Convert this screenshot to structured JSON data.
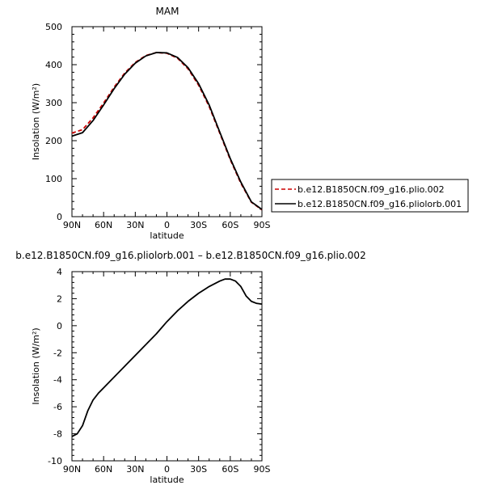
{
  "chart_data": [
    {
      "type": "line",
      "title": "MAM",
      "xlabel": "latitude",
      "ylabel": "Insolation (W/m²)",
      "x": [
        90,
        80,
        70,
        60,
        50,
        40,
        30,
        20,
        10,
        0,
        -10,
        -20,
        -30,
        -40,
        -50,
        -60,
        -70,
        -80,
        -90
      ],
      "xticks": [
        90,
        60,
        30,
        0,
        -30,
        -60,
        -90
      ],
      "xtick_labels": [
        "90N",
        "60N",
        "30N",
        "0",
        "30S",
        "60S",
        "90S"
      ],
      "xlim": [
        90,
        -90
      ],
      "ylim": [
        0,
        500
      ],
      "yticks": [
        0,
        100,
        200,
        300,
        400,
        500
      ],
      "series": [
        {
          "name": "b.e12.B1850CN.f09_g16.plio.002",
          "color": "#cc0000",
          "dash": "dashed",
          "values": [
            220,
            229,
            260,
            299,
            341,
            378,
            406,
            424,
            432,
            430,
            417,
            389,
            346,
            290,
            220,
            150,
            88,
            38,
            18
          ]
        },
        {
          "name": "b.e12.B1850CN.f09_g16.pliolorb.001",
          "color": "#000000",
          "dash": "solid",
          "values": [
            212,
            221,
            253,
            294,
            337,
            375,
            404,
            423,
            432,
            431,
            419,
            392,
            350,
            294,
            223,
            153,
            91,
            39,
            19
          ]
        }
      ]
    },
    {
      "type": "line",
      "title": "b.e12.B1850CN.f09_g16.pliolorb.001 – b.e12.B1850CN.f09_g16.plio.002",
      "xlabel": "latitude",
      "ylabel": "Insolation (W/m²)",
      "x": [
        90,
        85,
        80,
        75,
        70,
        65,
        60,
        50,
        40,
        30,
        20,
        10,
        0,
        -10,
        -20,
        -30,
        -40,
        -50,
        -55,
        -60,
        -65,
        -70,
        -75,
        -80,
        -85,
        -90
      ],
      "xticks": [
        90,
        60,
        30,
        0,
        -30,
        -60,
        -90
      ],
      "xtick_labels": [
        "90N",
        "60N",
        "30N",
        "0",
        "30S",
        "60S",
        "90S"
      ],
      "xlim": [
        90,
        -90
      ],
      "ylim": [
        -10,
        4
      ],
      "yticks": [
        -10,
        -8,
        -6,
        -4,
        -2,
        0,
        2,
        4
      ],
      "series": [
        {
          "name": "pliolorb.001 - plio.002",
          "color": "#000000",
          "dash": "solid",
          "values": [
            -8.2,
            -8.0,
            -7.4,
            -6.3,
            -5.5,
            -5.0,
            -4.6,
            -3.8,
            -3.0,
            -2.2,
            -1.4,
            -0.6,
            0.3,
            1.1,
            1.8,
            2.4,
            2.9,
            3.3,
            3.45,
            3.45,
            3.3,
            2.9,
            2.2,
            1.8,
            1.65,
            1.6
          ]
        }
      ]
    }
  ]
}
